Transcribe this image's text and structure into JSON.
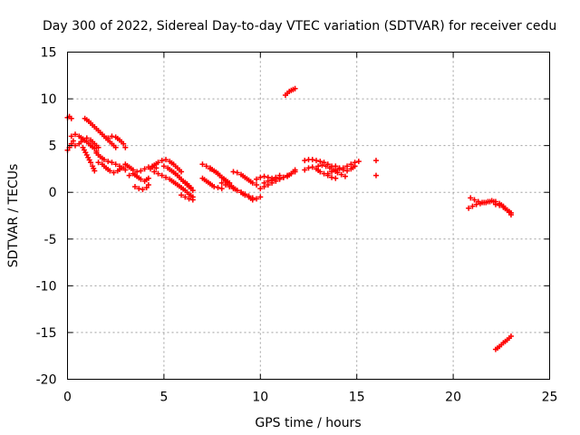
{
  "chart_data": {
    "type": "scatter",
    "title": "Day 300 of 2022, Sidereal Day-to-day VTEC variation (SDTVAR) for receiver cedu",
    "xlabel": "GPS time / hours",
    "ylabel": "SDTVAR / TECUs",
    "xlim": [
      0,
      25
    ],
    "ylim": [
      -20,
      15
    ],
    "xticks": [
      0,
      5,
      10,
      15,
      20,
      25
    ],
    "yticks": [
      -20,
      -15,
      -10,
      -5,
      0,
      5,
      10,
      15
    ],
    "grid": true,
    "marker": "+",
    "color": "#ff0000",
    "segments": [
      {
        "x": [
          0.0,
          0.1,
          0.2
        ],
        "y": [
          8.0,
          8.1,
          7.9
        ]
      },
      {
        "x": [
          0.0,
          0.1,
          0.2,
          0.3
        ],
        "y": [
          4.5,
          4.8,
          5.2,
          5.5
        ]
      },
      {
        "x": [
          0.2,
          0.4,
          0.6,
          0.8,
          1.0,
          1.2,
          1.4,
          1.5
        ],
        "y": [
          6.0,
          6.2,
          6.0,
          5.7,
          5.4,
          5.0,
          4.7,
          4.4
        ]
      },
      {
        "x": [
          0.4,
          0.6,
          0.8,
          1.0,
          1.2,
          1.4,
          1.6
        ],
        "y": [
          5.0,
          5.2,
          5.6,
          5.8,
          5.6,
          5.2,
          4.8
        ]
      },
      {
        "x": [
          0.8,
          1.0,
          1.2,
          1.3,
          1.4
        ],
        "y": [
          4.8,
          4.0,
          3.2,
          2.8,
          2.3
        ]
      },
      {
        "x": [
          0.9,
          1.1,
          1.3,
          1.5,
          1.7,
          1.9,
          2.1,
          2.3,
          2.5
        ],
        "y": [
          7.9,
          7.6,
          7.2,
          6.8,
          6.4,
          6.0,
          5.6,
          5.2,
          4.8
        ]
      },
      {
        "x": [
          1.6,
          1.8,
          2.0,
          2.2,
          2.4,
          2.6,
          2.8
        ],
        "y": [
          3.2,
          3.0,
          2.6,
          2.3,
          2.1,
          2.3,
          2.6
        ]
      },
      {
        "x": [
          1.5,
          1.7,
          1.9,
          2.1,
          2.3,
          2.5,
          2.7,
          2.9,
          3.0
        ],
        "y": [
          4.2,
          3.8,
          3.5,
          3.3,
          3.2,
          3.0,
          2.8,
          2.6,
          2.4
        ]
      },
      {
        "x": [
          2.1,
          2.3,
          2.5,
          2.7,
          2.9,
          3.0
        ],
        "y": [
          5.8,
          6.0,
          5.9,
          5.6,
          5.2,
          4.8
        ]
      },
      {
        "x": [
          3.0,
          3.2,
          3.4,
          3.6,
          3.8,
          4.0,
          4.2,
          4.4,
          4.6
        ],
        "y": [
          3.0,
          2.7,
          2.4,
          2.2,
          2.3,
          2.5,
          2.7,
          2.8,
          2.6
        ]
      },
      {
        "x": [
          3.2,
          3.4,
          3.6,
          3.8,
          4.0,
          4.2
        ],
        "y": [
          1.8,
          2.0,
          1.7,
          1.4,
          1.2,
          1.5
        ]
      },
      {
        "x": [
          3.5,
          3.7,
          3.9,
          4.1,
          4.2
        ],
        "y": [
          0.6,
          0.4,
          0.3,
          0.5,
          0.8
        ]
      },
      {
        "x": [
          4.3,
          4.5,
          4.7,
          4.9,
          5.1,
          5.3,
          5.5,
          5.7,
          5.9
        ],
        "y": [
          2.5,
          2.9,
          3.2,
          3.4,
          3.5,
          3.3,
          3.0,
          2.6,
          2.2
        ]
      },
      {
        "x": [
          4.5,
          4.7,
          4.9,
          5.1,
          5.3,
          5.5,
          5.7,
          5.9,
          6.1,
          6.3,
          6.5
        ],
        "y": [
          2.2,
          2.0,
          1.8,
          1.6,
          1.4,
          1.1,
          0.8,
          0.5,
          0.2,
          -0.2,
          -0.5
        ]
      },
      {
        "x": [
          5.0,
          5.2,
          5.4,
          5.6,
          5.8,
          6.0,
          6.2,
          6.4
        ],
        "y": [
          2.8,
          2.6,
          2.3,
          2.0,
          1.6,
          1.2,
          0.9,
          0.5
        ]
      },
      {
        "x": [
          5.6,
          5.8,
          6.0,
          6.2,
          6.4,
          6.5
        ],
        "y": [
          2.0,
          1.6,
          1.2,
          0.8,
          0.4,
          0.2
        ]
      },
      {
        "x": [
          5.9,
          6.1,
          6.3,
          6.5
        ],
        "y": [
          -0.3,
          -0.5,
          -0.7,
          -0.8
        ]
      },
      {
        "x": [
          7.0,
          7.2,
          7.4,
          7.6,
          7.8,
          8.0,
          8.2,
          8.4
        ],
        "y": [
          3.0,
          2.8,
          2.6,
          2.3,
          2.0,
          1.6,
          1.3,
          1.0
        ]
      },
      {
        "x": [
          7.0,
          7.2,
          7.4,
          7.6,
          7.8,
          8.0
        ],
        "y": [
          1.5,
          1.2,
          0.9,
          0.6,
          0.5,
          0.4
        ]
      },
      {
        "x": [
          7.4,
          7.6,
          7.8,
          8.0,
          8.2,
          8.4,
          8.6,
          8.8,
          9.0,
          9.2,
          9.4,
          9.6
        ],
        "y": [
          2.5,
          2.3,
          2.0,
          1.6,
          1.2,
          0.8,
          0.5,
          0.2,
          0.0,
          -0.2,
          -0.4,
          -0.6
        ]
      },
      {
        "x": [
          8.0,
          8.2,
          8.4,
          8.6,
          8.8,
          9.0,
          9.2,
          9.4,
          9.6,
          9.8,
          10.0
        ],
        "y": [
          1.0,
          0.8,
          0.6,
          0.4,
          0.2,
          0.0,
          -0.3,
          -0.5,
          -0.8,
          -0.7,
          -0.5
        ]
      },
      {
        "x": [
          8.6,
          8.8,
          9.0,
          9.2,
          9.4,
          9.6,
          9.8
        ],
        "y": [
          2.2,
          2.1,
          1.9,
          1.6,
          1.3,
          1.0,
          0.8
        ]
      },
      {
        "x": [
          9.8,
          10.0,
          10.2,
          10.4,
          10.6,
          10.8,
          11.0
        ],
        "y": [
          1.4,
          1.6,
          1.7,
          1.6,
          1.5,
          1.6,
          1.8
        ]
      },
      {
        "x": [
          10.0,
          10.2,
          10.4,
          10.6,
          10.8,
          11.0,
          11.2,
          11.4,
          11.6,
          11.8
        ],
        "y": [
          0.4,
          0.6,
          0.8,
          1.0,
          1.2,
          1.4,
          1.6,
          1.8,
          2.0,
          2.2
        ]
      },
      {
        "x": [
          10.2,
          10.4,
          10.6,
          10.8,
          11.0,
          11.2,
          11.4,
          11.6,
          11.8
        ],
        "y": [
          1.0,
          1.2,
          1.3,
          1.4,
          1.5,
          1.6,
          1.7,
          2.0,
          2.4
        ]
      },
      {
        "x": [
          11.3,
          11.4,
          11.5,
          11.6,
          11.7,
          11.8
        ],
        "y": [
          10.4,
          10.6,
          10.8,
          10.9,
          11.0,
          11.1
        ]
      },
      {
        "x": [
          12.3,
          12.5,
          12.7,
          12.9,
          13.1,
          13.3,
          13.5,
          13.7
        ],
        "y": [
          3.4,
          3.5,
          3.5,
          3.4,
          3.3,
          3.2,
          3.0,
          2.8
        ]
      },
      {
        "x": [
          12.3,
          12.5,
          12.7,
          12.9,
          13.1,
          13.3,
          13.5,
          13.7,
          13.9
        ],
        "y": [
          2.4,
          2.6,
          2.7,
          2.5,
          2.2,
          2.0,
          1.8,
          1.6,
          1.5
        ]
      },
      {
        "x": [
          13.0,
          13.2,
          13.4,
          13.6,
          13.8,
          14.0,
          14.2,
          14.4
        ],
        "y": [
          2.8,
          2.9,
          2.8,
          2.6,
          2.4,
          2.1,
          1.9,
          1.7
        ]
      },
      {
        "x": [
          13.5,
          13.7,
          13.9,
          14.1,
          14.3,
          14.5,
          14.7,
          14.9,
          15.1
        ],
        "y": [
          2.0,
          2.2,
          2.4,
          2.5,
          2.6,
          2.8,
          3.0,
          3.2,
          3.3
        ]
      },
      {
        "x": [
          13.9,
          14.1,
          14.3,
          14.5,
          14.7,
          14.9
        ],
        "y": [
          2.8,
          2.6,
          2.4,
          2.3,
          2.5,
          2.8
        ]
      },
      {
        "x": [
          16.0
        ],
        "y": [
          3.4
        ]
      },
      {
        "x": [
          16.0
        ],
        "y": [
          1.8
        ]
      },
      {
        "x": [
          20.8,
          21.0,
          21.2,
          21.4,
          21.6,
          21.8,
          22.0,
          22.2,
          22.4,
          22.6,
          22.8,
          23.0
        ],
        "y": [
          -1.7,
          -1.5,
          -1.3,
          -1.2,
          -1.1,
          -1.0,
          -0.9,
          -1.0,
          -1.2,
          -1.5,
          -1.9,
          -2.2
        ]
      },
      {
        "x": [
          20.9,
          21.1,
          21.3,
          21.5,
          21.7,
          21.9,
          22.1
        ],
        "y": [
          -0.6,
          -0.8,
          -1.0,
          -1.1,
          -1.1,
          -1.0,
          -1.0
        ]
      },
      {
        "x": [
          22.2,
          22.4,
          22.6,
          22.8,
          23.0
        ],
        "y": [
          -1.3,
          -1.4,
          -1.6,
          -1.9,
          -2.4
        ]
      },
      {
        "x": [
          22.2,
          22.4,
          22.6,
          22.8,
          23.0
        ],
        "y": [
          -16.8,
          -16.5,
          -16.1,
          -15.8,
          -15.4
        ]
      }
    ]
  }
}
